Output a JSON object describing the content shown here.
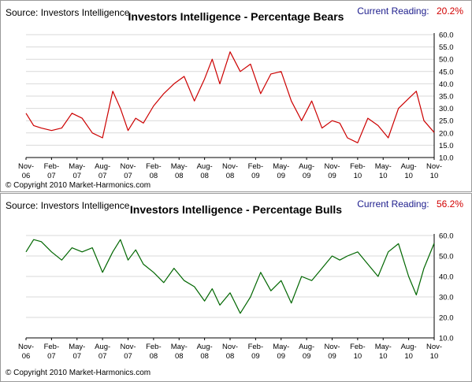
{
  "source": "Source: Investors Intelligence",
  "copyright": "© Copyright 2010 Market-Harmonics.com",
  "x_ticks": [
    "Nov-06",
    "Feb-07",
    "May-07",
    "Aug-07",
    "Nov-07",
    "Feb-08",
    "May-08",
    "Aug-08",
    "Nov-08",
    "Feb-09",
    "May-09",
    "Aug-09",
    "Nov-09",
    "Feb-10",
    "May-10",
    "Aug-10",
    "Nov-10"
  ],
  "colors": {
    "bears_line": "#cc0000",
    "bulls_line": "#006600",
    "reading_label": "#1c1c8c",
    "reading_value": "#d20000",
    "grid": "#d9d9d9"
  },
  "chart_data": [
    {
      "type": "line",
      "title": "Investors Intelligence - Percentage Bears",
      "reading_label": "Current Reading:",
      "reading_value": "20.2%",
      "ylim": [
        10,
        60
      ],
      "y_ticks": [
        "60.0",
        "55.0",
        "50.0",
        "45.0",
        "40.0",
        "35.0",
        "30.0",
        "25.0",
        "20.0",
        "15.0",
        "10.0"
      ],
      "x_ticks": [
        "Nov-06",
        "Feb-07",
        "May-07",
        "Aug-07",
        "Nov-07",
        "Feb-08",
        "May-08",
        "Aug-08",
        "Nov-08",
        "Feb-09",
        "May-09",
        "Aug-09",
        "Nov-09",
        "Feb-10",
        "May-10",
        "Aug-10",
        "Nov-10"
      ],
      "grid": "horizontal",
      "series": [
        {
          "x": [
            0,
            0.3,
            0.6,
            1,
            1.4,
            1.8,
            2.2,
            2.6,
            3,
            3.4,
            3.7,
            4,
            4.3,
            4.6,
            5,
            5.4,
            5.8,
            6.2,
            6.6,
            7,
            7.3,
            7.6,
            8,
            8.4,
            8.8,
            9.2,
            9.6,
            10,
            10.4,
            10.8,
            11.2,
            11.6,
            12,
            12.3,
            12.6,
            13,
            13.4,
            13.8,
            14.2,
            14.6,
            15,
            15.3,
            15.6,
            16
          ],
          "values": [
            28,
            23,
            22,
            21,
            22,
            28,
            26,
            20,
            18,
            37,
            30,
            21,
            26,
            24,
            31,
            36,
            40,
            43,
            33,
            42,
            50,
            40,
            53,
            45,
            48,
            36,
            44,
            45,
            33,
            25,
            33,
            22,
            25,
            24,
            18,
            16,
            26,
            23,
            18,
            30,
            34,
            37,
            25,
            20.2
          ]
        }
      ]
    },
    {
      "type": "line",
      "title": "Investors Intelligence - Percentage Bulls",
      "reading_label": "Current Reading:",
      "reading_value": "56.2%",
      "ylim": [
        10,
        60
      ],
      "y_ticks": [
        "60.0",
        "50.0",
        "40.0",
        "30.0",
        "20.0",
        "10.0"
      ],
      "x_ticks": [
        "Nov-06",
        "Feb-07",
        "May-07",
        "Aug-07",
        "Nov-07",
        "Feb-08",
        "May-08",
        "Aug-08",
        "Nov-08",
        "Feb-09",
        "May-09",
        "Aug-09",
        "Nov-09",
        "Feb-10",
        "May-10",
        "Aug-10",
        "Nov-10"
      ],
      "grid": "horizontal",
      "series": [
        {
          "x": [
            0,
            0.3,
            0.6,
            1,
            1.4,
            1.8,
            2.2,
            2.6,
            3,
            3.4,
            3.7,
            4,
            4.3,
            4.6,
            5,
            5.4,
            5.8,
            6.2,
            6.6,
            7,
            7.3,
            7.6,
            8,
            8.4,
            8.8,
            9.2,
            9.6,
            10,
            10.4,
            10.8,
            11.2,
            11.6,
            12,
            12.3,
            12.6,
            13,
            13.4,
            13.8,
            14.2,
            14.6,
            15,
            15.3,
            15.6,
            16
          ],
          "values": [
            52,
            58,
            57,
            52,
            48,
            54,
            52,
            54,
            42,
            52,
            58,
            48,
            53,
            46,
            42,
            37,
            44,
            38,
            35,
            28,
            34,
            26,
            32,
            22,
            30,
            42,
            33,
            38,
            27,
            40,
            38,
            44,
            50,
            48,
            50,
            52,
            46,
            40,
            52,
            56,
            40,
            31,
            44,
            56.2
          ]
        }
      ]
    }
  ]
}
